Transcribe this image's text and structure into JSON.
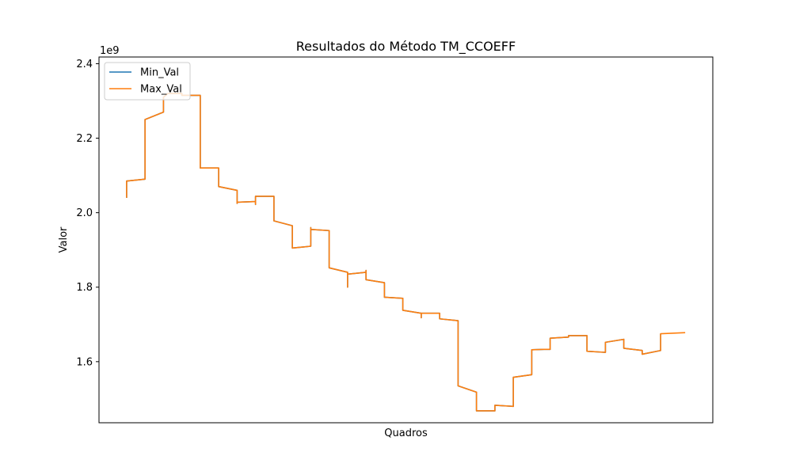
{
  "chart_data": {
    "type": "line",
    "title": "Resultados do Método TM_CCOEFF",
    "xlabel": "Quadros",
    "ylabel": "Valor",
    "y_offset_label": "1e9",
    "x_ticks_shown": false,
    "xlim": [
      0,
      100
    ],
    "ylim": [
      1.436,
      2.418
    ],
    "y_ticks": [
      1.6,
      1.8,
      2.0,
      2.2,
      2.4
    ],
    "y_tick_labels": [
      "1.6",
      "1.8",
      "2.0",
      "2.2",
      "2.4"
    ],
    "grid": false,
    "legend_position": "top-left",
    "series": [
      {
        "name": "Min_Val",
        "color": "#1f77b4",
        "x": [
          4.5,
          4.5,
          4.5,
          7.5,
          7.5,
          10.5,
          10.5,
          11.2,
          13.5,
          13.5,
          16.5,
          16.5,
          19.5,
          19.5,
          22.5,
          22.5,
          22.5,
          25.5,
          25.5,
          25.5,
          28.5,
          28.5,
          31.5,
          31.5,
          34.5,
          34.5,
          34.5,
          37.5,
          37.5,
          40.5,
          40.5,
          40.5,
          43.5,
          43.5,
          43.5,
          46.5,
          46.5,
          49.5,
          49.5,
          52.5,
          52.5,
          52.5,
          55.5,
          55.5,
          58.5,
          58.5,
          61.5,
          61.5,
          64.5,
          64.5,
          67.5,
          67.5,
          70.5,
          70.5,
          72.5,
          73.5,
          73.5,
          76.5,
          76.5,
          79.5,
          79.5,
          82.5,
          82.5,
          82.5,
          85.5,
          85.5,
          88.5,
          88.5,
          91.5,
          91.5
        ],
        "values": [
          2.04,
          2.085,
          2.085,
          2.09,
          2.25,
          2.27,
          2.31,
          2.32,
          2.32,
          2.315,
          2.315,
          2.12,
          2.12,
          2.07,
          2.06,
          2.025,
          2.028,
          2.03,
          2.022,
          2.044,
          2.044,
          1.978,
          1.965,
          1.905,
          1.91,
          1.96,
          1.955,
          1.952,
          1.852,
          1.84,
          1.8,
          1.835,
          1.84,
          1.845,
          1.82,
          1.812,
          1.773,
          1.77,
          1.738,
          1.73,
          1.718,
          1.73,
          1.73,
          1.715,
          1.71,
          1.535,
          1.518,
          1.468,
          1.468,
          1.483,
          1.48,
          1.558,
          1.565,
          1.632,
          1.633,
          1.633,
          1.663,
          1.666,
          1.67,
          1.67,
          1.628,
          1.625,
          1.652,
          1.652,
          1.66,
          1.636,
          1.63,
          1.62,
          1.63,
          1.675
        ]
      },
      {
        "name": "Max_Val",
        "color": "#ff7f0e",
        "x": [
          4.5,
          4.5,
          4.5,
          7.5,
          7.5,
          10.5,
          10.5,
          11.2,
          13.5,
          13.5,
          16.5,
          16.5,
          19.5,
          19.5,
          22.5,
          22.5,
          22.5,
          25.5,
          25.5,
          25.5,
          28.5,
          28.5,
          31.5,
          31.5,
          34.5,
          34.5,
          34.5,
          37.5,
          37.5,
          40.5,
          40.5,
          40.5,
          43.5,
          43.5,
          43.5,
          46.5,
          46.5,
          49.5,
          49.5,
          52.5,
          52.5,
          52.5,
          55.5,
          55.5,
          58.5,
          58.5,
          61.5,
          61.5,
          64.5,
          64.5,
          67.5,
          67.5,
          70.5,
          70.5,
          72.5,
          73.5,
          73.5,
          76.5,
          76.5,
          79.5,
          79.5,
          82.5,
          82.5,
          82.5,
          85.5,
          85.5,
          88.5,
          88.5,
          91.5,
          91.5,
          95.5
        ],
        "values": [
          2.04,
          2.085,
          2.085,
          2.09,
          2.25,
          2.27,
          2.31,
          2.32,
          2.32,
          2.315,
          2.315,
          2.12,
          2.12,
          2.07,
          2.06,
          2.025,
          2.028,
          2.03,
          2.022,
          2.044,
          2.044,
          1.978,
          1.965,
          1.905,
          1.91,
          1.96,
          1.955,
          1.952,
          1.852,
          1.84,
          1.8,
          1.835,
          1.84,
          1.845,
          1.82,
          1.812,
          1.773,
          1.77,
          1.738,
          1.73,
          1.718,
          1.73,
          1.73,
          1.715,
          1.71,
          1.535,
          1.518,
          1.468,
          1.468,
          1.483,
          1.48,
          1.558,
          1.565,
          1.632,
          1.633,
          1.633,
          1.663,
          1.666,
          1.67,
          1.67,
          1.628,
          1.625,
          1.652,
          1.652,
          1.66,
          1.636,
          1.63,
          1.62,
          1.63,
          1.675,
          1.678
        ]
      }
    ]
  }
}
